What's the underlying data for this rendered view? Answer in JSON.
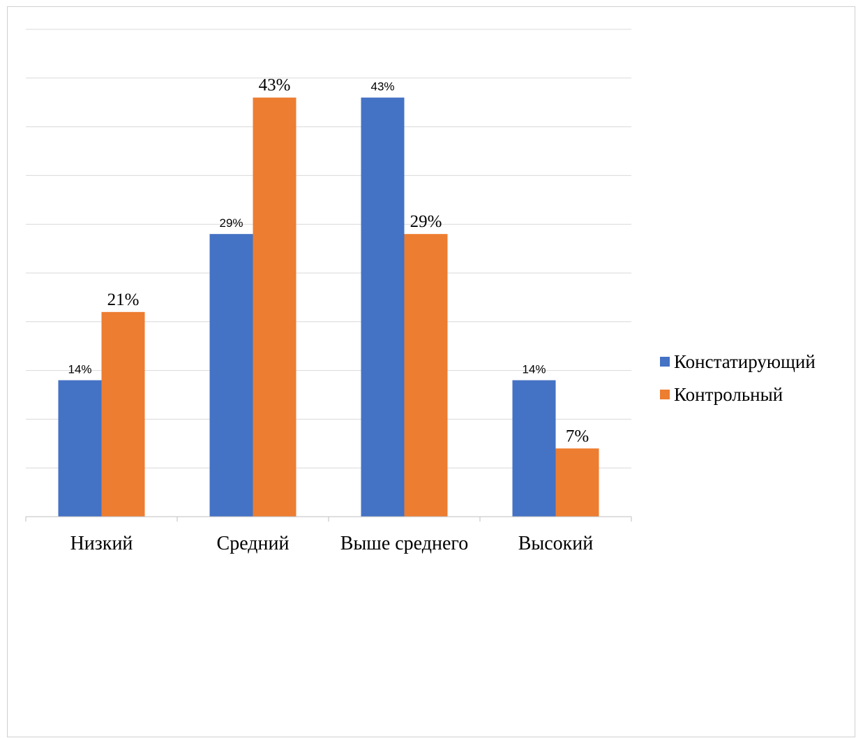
{
  "chart_data": {
    "type": "bar",
    "title": "",
    "xlabel": "",
    "ylabel": "",
    "categories": [
      "Низкий",
      "Средний",
      "Выше среднего",
      "Высокий"
    ],
    "ylim": [
      0,
      0.5
    ],
    "y_tick_step": 0.05,
    "grid": true,
    "legend_position": "right",
    "series": [
      {
        "name": "Констатирующий",
        "color": "#4472C4",
        "values": [
          0.14,
          0.29,
          0.43,
          0.14
        ],
        "labels": [
          "14%",
          "29%",
          "43%",
          "14%"
        ]
      },
      {
        "name": "Контрольный",
        "color": "#ED7D31",
        "values": [
          0.21,
          0.43,
          0.29,
          0.07
        ],
        "labels": [
          "21%",
          "43%",
          "29%",
          "7%"
        ]
      }
    ]
  }
}
